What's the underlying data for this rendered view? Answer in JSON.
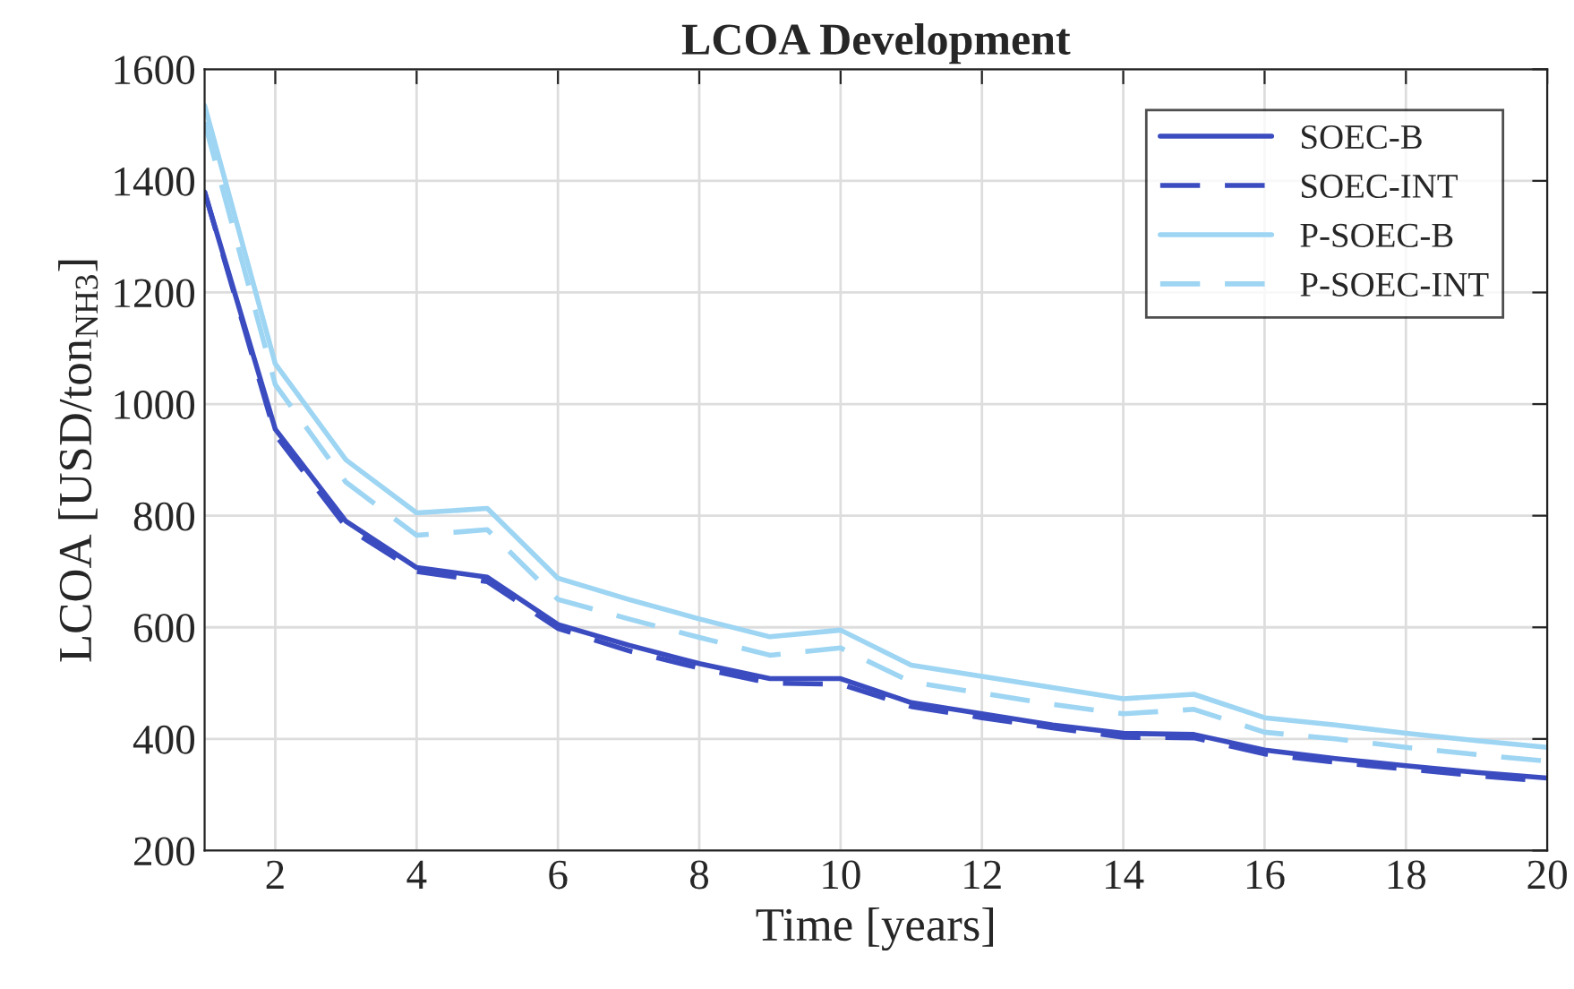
{
  "chart_data": {
    "type": "line",
    "title": "LCOA Development",
    "xlabel": "Time [years]",
    "ylabel": "LCOA [USD/ton$_{NH3}$]",
    "x": [
      1,
      2,
      3,
      4,
      5,
      6,
      7,
      8,
      9,
      10,
      11,
      12,
      13,
      14,
      15,
      16,
      17,
      18,
      19,
      20
    ],
    "series": [
      {
        "name": "SOEC-B",
        "color": "#3b4cc0",
        "line_style": "solid",
        "values": [
          1380,
          955,
          790,
          707,
          690,
          605,
          568,
          535,
          508,
          508,
          465,
          445,
          425,
          410,
          408,
          380,
          365,
          352,
          340,
          330
        ]
      },
      {
        "name": "SOEC-INT",
        "color": "#3b4cc0",
        "line_style": "dashed",
        "values": [
          1380,
          945,
          780,
          700,
          682,
          598,
          558,
          527,
          500,
          498,
          458,
          438,
          420,
          403,
          402,
          373,
          358,
          346,
          334,
          324
        ]
      },
      {
        "name": "P-SOEC-B",
        "color": "#9dd5f3",
        "line_style": "solid",
        "values": [
          1535,
          1072,
          900,
          805,
          813,
          688,
          650,
          615,
          583,
          595,
          532,
          512,
          492,
          472,
          480,
          438,
          425,
          410,
          397,
          385
        ]
      },
      {
        "name": "P-SOEC-INT",
        "color": "#9dd5f3",
        "line_style": "dashed",
        "values": [
          1505,
          1035,
          860,
          765,
          775,
          650,
          615,
          582,
          550,
          563,
          502,
          482,
          462,
          445,
          453,
          412,
          400,
          385,
          372,
          360
        ]
      }
    ],
    "xlim": [
      1,
      20
    ],
    "xticks": [
      2,
      4,
      6,
      8,
      10,
      12,
      14,
      16,
      18,
      20
    ],
    "ylim": [
      200,
      1600
    ],
    "yticks": [
      200,
      400,
      600,
      800,
      1000,
      1200,
      1400,
      1600
    ],
    "grid": true,
    "legend": "top right",
    "marker": "none"
  }
}
